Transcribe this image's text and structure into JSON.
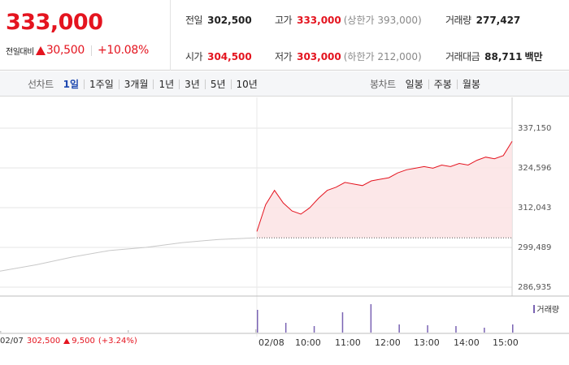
{
  "quote": {
    "price": "333,000",
    "change_label": "전일대비",
    "change_amount": "30,500",
    "change_rate": "+10.08%",
    "prev_close_label": "전일",
    "prev_close": "302,500",
    "open_label": "시가",
    "open": "304,500",
    "high_label": "고가",
    "high": "333,000",
    "upper_limit": "(상한가 393,000)",
    "low_label": "저가",
    "low": "303,000",
    "lower_limit": "(하한가 212,000)",
    "volume_label": "거래량",
    "volume": "277,427",
    "amount_label": "거래대금",
    "amount": "88,711",
    "amount_unit": "백만",
    "up_color": "#e4141f"
  },
  "tabs": {
    "line_title": "선차트",
    "line": [
      "1일",
      "1주일",
      "3개월",
      "1년",
      "3년",
      "5년",
      "10년"
    ],
    "line_active": "1일",
    "candle_title": "봉차트",
    "candle": [
      "일봉",
      "주봉",
      "월봉"
    ],
    "active_color": "#1d48b0"
  },
  "legend": {
    "volume": "거래량"
  },
  "bottom_info": {
    "date": "02/07",
    "price": "302,500",
    "change": "9,500",
    "rate": "(+3.24%)"
  },
  "chart_data": [
    {
      "type": "line",
      "ylim": [
        286935,
        337150
      ],
      "y_ticks": [
        "337,150",
        "324,596",
        "312,043",
        "299,489",
        "286,935"
      ],
      "x_ticks": [
        "02/07",
        "02/08",
        "10:00",
        "11:00",
        "12:00",
        "13:00",
        "14:00",
        "15:00"
      ],
      "prev_close": 302500,
      "series": [
        {
          "x": [
            "02/07 09:00",
            "02/07 10:00",
            "02/07 11:00",
            "02/07 12:00",
            "02/07 13:00",
            "02/07 14:00",
            "02/07 15:00",
            "02/07 15:30"
          ],
          "values": [
            292000,
            294000,
            296500,
            298500,
            299500,
            301000,
            302000,
            302500
          ],
          "color": "#c8c8c8"
        },
        {
          "x": [
            "09:00",
            "09:10",
            "09:20",
            "09:30",
            "09:40",
            "09:50",
            "10:00",
            "10:15",
            "10:30",
            "10:45",
            "11:00",
            "11:15",
            "11:30",
            "11:45",
            "12:00",
            "12:15",
            "12:30",
            "12:45",
            "13:00",
            "13:15",
            "13:30",
            "13:45",
            "14:00",
            "14:15",
            "14:30",
            "14:45",
            "15:00",
            "15:10",
            "15:20",
            "15:30"
          ],
          "values": [
            304500,
            313000,
            317500,
            313500,
            311000,
            310000,
            312000,
            315000,
            317500,
            318500,
            320000,
            319500,
            319000,
            320500,
            321000,
            321500,
            323000,
            324000,
            324500,
            325000,
            324500,
            325500,
            325000,
            326000,
            325500,
            327000,
            328000,
            327500,
            328500,
            333000
          ],
          "color": "#e4141f"
        }
      ],
      "volume": {
        "legend": "거래량",
        "x": [
          "02/07 09:00",
          "02/07 12:00",
          "02/07 15:30",
          "09:00",
          "09:30",
          "10:00",
          "11:00",
          "11:05",
          "12:00",
          "13:00",
          "14:00",
          "15:00",
          "15:30"
        ],
        "values": [
          2,
          3,
          4,
          28,
          12,
          8,
          25,
          35,
          10,
          9,
          8,
          6,
          10
        ]
      }
    }
  ]
}
